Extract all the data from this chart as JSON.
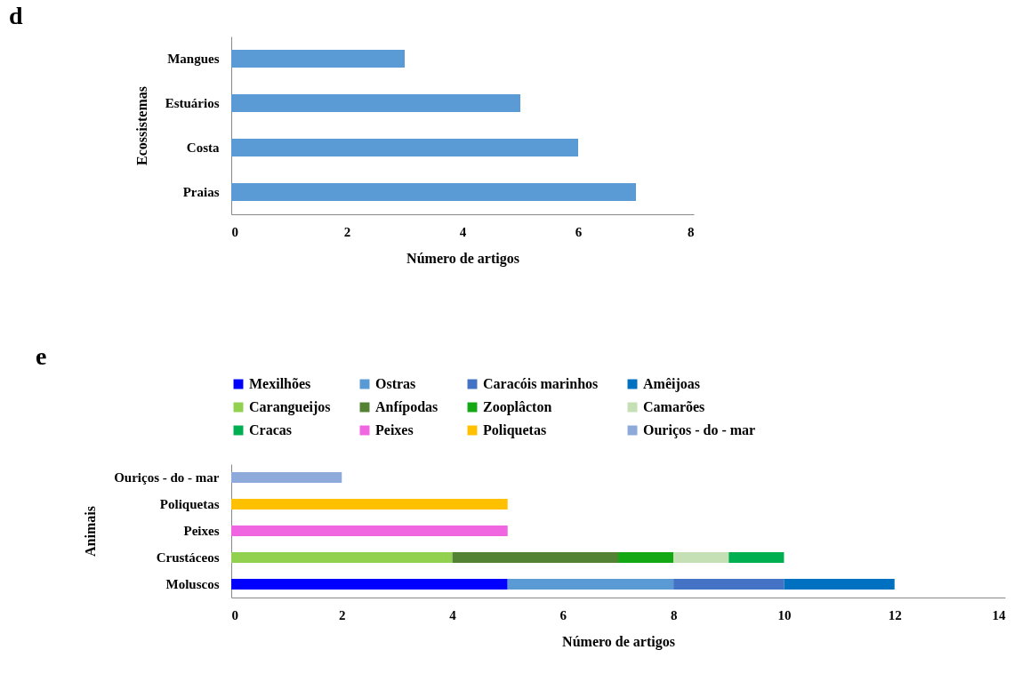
{
  "chart_data": [
    {
      "type": "bar",
      "title": "d",
      "orientation": "horizontal",
      "categories": [
        "Mangues",
        "Estuários",
        "Costa",
        "Praias"
      ],
      "values": [
        3,
        5,
        6,
        7
      ],
      "color": "#5b9bd5",
      "xlim": [
        0,
        8
      ],
      "xticks": [
        0,
        2,
        4,
        6,
        8
      ],
      "xlabel": "Número de artigos",
      "ylabel": "Ecossistemas",
      "grid": false,
      "legend": false
    },
    {
      "type": "bar",
      "title": "e",
      "orientation": "horizontal",
      "stacked": true,
      "categories": [
        "Ouriços - do - mar",
        "Poliquetas",
        "Peixes",
        "Crustáceos",
        "Moluscos"
      ],
      "xlim": [
        0,
        14
      ],
      "xticks": [
        0,
        2,
        4,
        6,
        8,
        10,
        12,
        14
      ],
      "xlabel": "Número de artigos",
      "ylabel": "Animais",
      "grid": false,
      "legend": "top",
      "series": [
        {
          "name": "Mexilhões",
          "color": "#0000ff",
          "values": [
            null,
            null,
            null,
            null,
            5
          ]
        },
        {
          "name": "Ostras",
          "color": "#5b9bd5",
          "values": [
            null,
            null,
            null,
            null,
            3
          ]
        },
        {
          "name": "Caracóis marinhos",
          "color": "#4472c4",
          "values": [
            null,
            null,
            null,
            null,
            2
          ]
        },
        {
          "name": "Amêijoas",
          "color": "#0070c0",
          "values": [
            null,
            null,
            null,
            null,
            2
          ]
        },
        {
          "name": "Carangueijos",
          "color": "#92d050",
          "values": [
            null,
            null,
            null,
            4,
            null
          ]
        },
        {
          "name": "Anfípodas",
          "color": "#548235",
          "values": [
            null,
            null,
            null,
            3,
            null
          ]
        },
        {
          "name": "Zooplâcton",
          "color": "#14a814",
          "values": [
            null,
            null,
            null,
            1,
            null
          ]
        },
        {
          "name": "Camarões",
          "color": "#c5e0b4",
          "values": [
            null,
            null,
            null,
            1,
            null
          ]
        },
        {
          "name": "Cracas",
          "color": "#00b050",
          "values": [
            null,
            null,
            null,
            1,
            null
          ]
        },
        {
          "name": "Peixes",
          "color": "#f066e0",
          "values": [
            null,
            null,
            5,
            null,
            null
          ]
        },
        {
          "name": "Poliquetas",
          "color": "#ffc000",
          "values": [
            null,
            5,
            null,
            null,
            null
          ]
        },
        {
          "name": "Ouriços - do - mar",
          "color": "#8eaadb",
          "values": [
            2,
            null,
            null,
            null,
            null
          ]
        }
      ]
    }
  ]
}
